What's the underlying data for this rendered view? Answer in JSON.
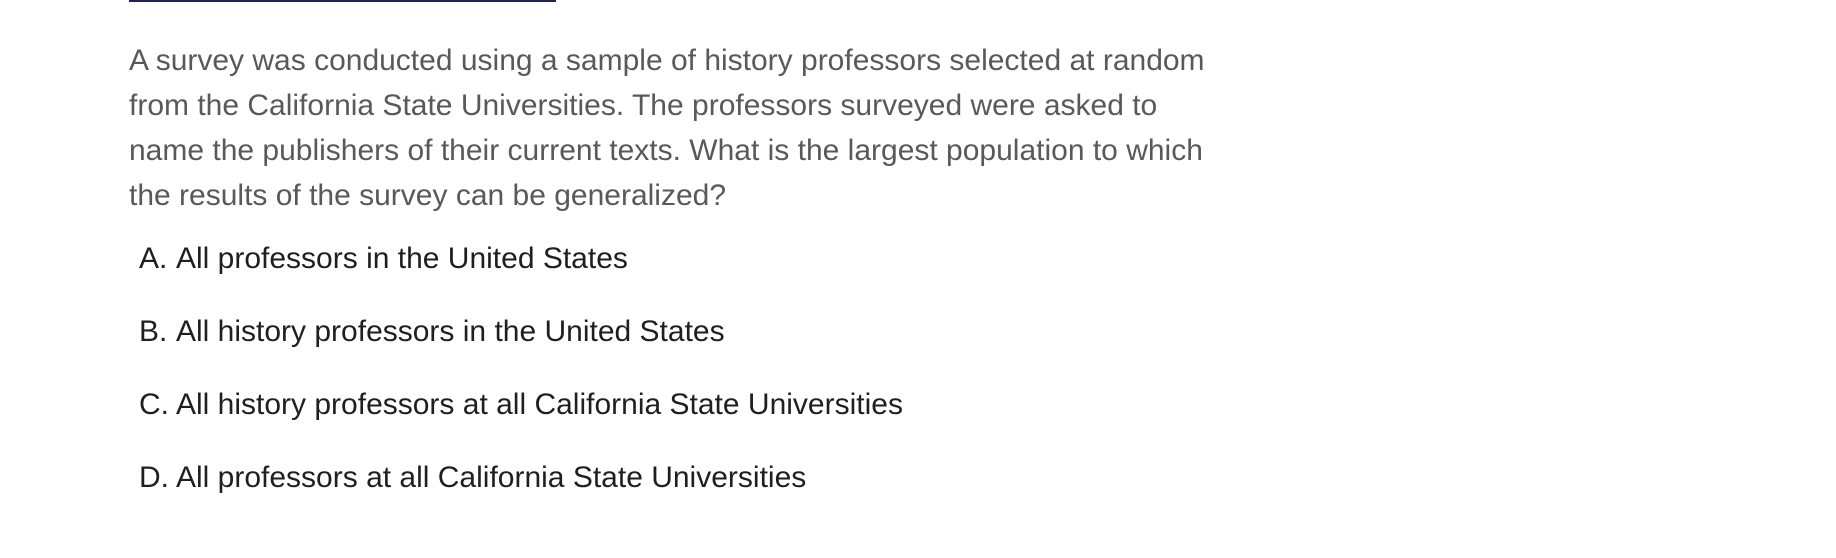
{
  "question": {
    "text": "A survey was conducted using a sample of history professors selected at random from the California State Universities. The professors surveyed were asked to name the publishers of their current texts. What is the largest population to which the results of the survey can be generalized?"
  },
  "choices": [
    {
      "letter": "A.",
      "text": "All professors in the United States"
    },
    {
      "letter": "B.",
      "text": "All history professors in the United States"
    },
    {
      "letter": "C.",
      "text": "All history professors at all California State Universities"
    },
    {
      "letter": "D.",
      "text": "All professors at all California State Universities"
    }
  ],
  "colors": {
    "question_text": "#595959",
    "choice_text": "#1f1f1f",
    "top_rule": "#1f2352"
  }
}
